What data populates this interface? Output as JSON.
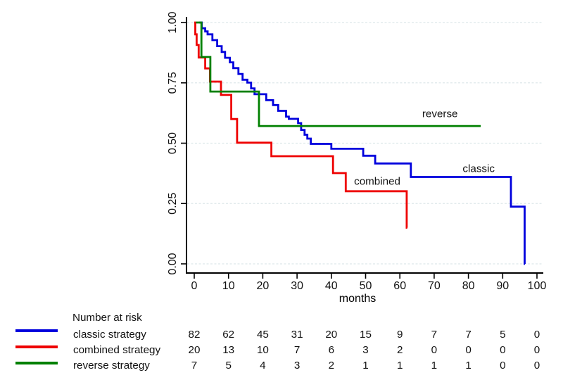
{
  "chart_data": {
    "type": "line",
    "subtype": "kaplan-meier-step",
    "title": "",
    "xlabel": "months",
    "ylabel": "",
    "xlim": [
      0,
      100
    ],
    "ylim": [
      0,
      1
    ],
    "xticks": [
      0,
      10,
      20,
      30,
      40,
      50,
      60,
      70,
      80,
      90,
      100
    ],
    "yticks": [
      0,
      0.25,
      0.5,
      0.75,
      1
    ],
    "ytick_labels": [
      "0.00",
      "0.25",
      "0.50",
      "0.75",
      "1.00"
    ],
    "grid": "horizontal-dashed",
    "legend_position": "inline-curve-labels",
    "series": [
      {
        "name": "classic strategy",
        "label": "classic",
        "color": "#0000dd",
        "label_anchor": {
          "t": 83.0,
          "s": 0.394
        },
        "points": [
          [
            1.5,
            1.0
          ],
          [
            2.2,
            0.976
          ],
          [
            3.2,
            0.963
          ],
          [
            3.9,
            0.951
          ],
          [
            5.3,
            0.927
          ],
          [
            6.7,
            0.902
          ],
          [
            8,
            0.878
          ],
          [
            9,
            0.854
          ],
          [
            10.4,
            0.835
          ],
          [
            11.4,
            0.811
          ],
          [
            12.9,
            0.787
          ],
          [
            14.1,
            0.763
          ],
          [
            15.5,
            0.751
          ],
          [
            16.6,
            0.727
          ],
          [
            17.6,
            0.703
          ],
          [
            21,
            0.678
          ],
          [
            23,
            0.658
          ],
          [
            24.5,
            0.634
          ],
          [
            26.8,
            0.61
          ],
          [
            27.6,
            0.601
          ],
          [
            30.3,
            0.583
          ],
          [
            31.2,
            0.555
          ],
          [
            32.2,
            0.535
          ],
          [
            33,
            0.519
          ],
          [
            34,
            0.497
          ],
          [
            40,
            0.477
          ],
          [
            49.3,
            0.448
          ],
          [
            52.8,
            0.416
          ],
          [
            63.2,
            0.36
          ],
          [
            92.4,
            0.237
          ],
          [
            96.4,
            0.0
          ]
        ],
        "end_t": 96.5
      },
      {
        "name": "combined strategy",
        "label": "combined",
        "color": "#ee0000",
        "label_anchor": {
          "t": 53.4,
          "s": 0.341
        },
        "points": [
          [
            0,
            1.0
          ],
          [
            0.3,
            0.951
          ],
          [
            0.7,
            0.907
          ],
          [
            1.3,
            0.855
          ],
          [
            3.2,
            0.81
          ],
          [
            4.6,
            0.755
          ],
          [
            7.8,
            0.7
          ],
          [
            10.8,
            0.6
          ],
          [
            12.5,
            0.502
          ],
          [
            22.5,
            0.446
          ],
          [
            40.5,
            0.376
          ],
          [
            44.2,
            0.301
          ],
          [
            62,
            0.15
          ]
        ],
        "end_t": 62.15
      },
      {
        "name": "reverse strategy",
        "label": "reverse",
        "color": "#008000",
        "label_anchor": {
          "t": 71.7,
          "s": 0.621
        },
        "points": [
          [
            0.5,
            1.0
          ],
          [
            2.1,
            0.857
          ],
          [
            4.7,
            0.714
          ],
          [
            18.9,
            0.571
          ]
        ],
        "end_t": 83.6
      }
    ],
    "at_risk": {
      "title": "Number at risk",
      "columns": [
        0,
        10,
        20,
        30,
        40,
        50,
        60,
        70,
        80,
        90,
        100
      ],
      "rows": [
        {
          "name": "classic strategy",
          "color": "#0000dd",
          "values": [
            82,
            62,
            45,
            31,
            20,
            15,
            9,
            7,
            7,
            5,
            0
          ]
        },
        {
          "name": "combined strategy",
          "color": "#ee0000",
          "values": [
            20,
            13,
            10,
            7,
            6,
            3,
            2,
            0,
            0,
            0,
            0
          ]
        },
        {
          "name": "reverse strategy",
          "color": "#008000",
          "values": [
            7,
            5,
            4,
            3,
            2,
            1,
            1,
            1,
            1,
            0,
            0
          ]
        }
      ]
    },
    "colors": {
      "axis": "#000000",
      "grid": "#dde8ea",
      "text": "#111111"
    }
  }
}
